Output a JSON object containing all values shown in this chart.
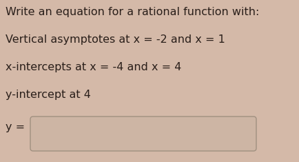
{
  "line1": "Write an equation for a rational function with:",
  "line2": "Vertical asymptotes at x = -2 and x = 1",
  "line3": "x-intercepts at x = -4 and x = 4",
  "line4": "y-intercept at 4",
  "line5": "y =",
  "bg_color": "#d4b9a8",
  "text_color": "#2a1f1a",
  "box_edge_color": "#a09080",
  "box_bg_color": "#cdb5a4",
  "font_size": 11.5,
  "fig_width": 4.35,
  "fig_height": 2.35,
  "dpi": 100
}
